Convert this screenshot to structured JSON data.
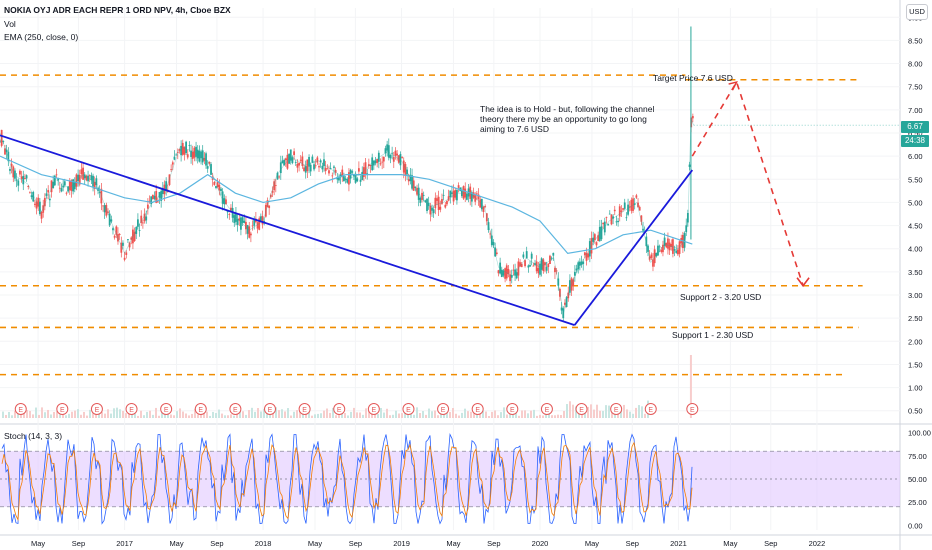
{
  "header": {
    "symbol_line": "NOKIA OYJ ADR EACH REPR 1 ORD NPV, 4h, Cboe BZX",
    "vol_label": "Vol",
    "ema_label": "EMA (250, close, 0)",
    "stoch_label": "Stoch (14, 3, 3)",
    "currency_button": "USD"
  },
  "price_tags": {
    "last_price": "6.67",
    "countdown": "24:38"
  },
  "colors": {
    "up": "#26a69a",
    "down": "#ef5350",
    "ema": "#5cb6e0",
    "channel": "#1a1adb",
    "levels": "#f08c00",
    "projection": "#e53935",
    "stoch_k": "#2962ff",
    "stoch_d": "#f57c00",
    "stoch_band": "#e1c8ff",
    "earnings": "#e45a5a"
  },
  "annotations": {
    "idea": [
      "The idea is to Hold - but, following the channel",
      "theory there my be an opportunity to go long",
      "aiming to 7.6 USD"
    ],
    "target": "Target Price 7.6 USD",
    "support2": "Support 2 - 3.20 USD",
    "support1": "Support 1 - 2.30 USD"
  },
  "earnings_marker": "E",
  "chart_data": {
    "type": "line",
    "title": "NOKIA OYJ ADR EACH REPR 1 ORD NPV, 4h, Cboe BZX",
    "x_axis": {
      "labels": [
        "May",
        "Sep",
        "2017",
        "May",
        "Sep",
        "2018",
        "May",
        "Sep",
        "2019",
        "May",
        "Sep",
        "2020",
        "May",
        "Sep",
        "2021",
        "May",
        "Sep",
        "2022"
      ],
      "range_start": 2016.1,
      "range_end": 2022.6
    },
    "y_axis": {
      "unit": "USD",
      "ticks": [
        "9.00",
        "8.50",
        "8.00",
        "7.50",
        "7.00",
        "6.50",
        "6.00",
        "5.50",
        "5.00",
        "4.50",
        "4.00",
        "3.50",
        "3.00",
        "2.50",
        "2.00",
        "1.50",
        "1.00",
        "0.50"
      ],
      "range": [
        0.3,
        9.2
      ]
    },
    "price_series": {
      "name": "NOKIA",
      "x": [
        2016.1,
        2016.2,
        2016.3,
        2016.4,
        2016.5,
        2016.6,
        2016.7,
        2016.8,
        2016.9,
        2017.0,
        2017.1,
        2017.2,
        2017.3,
        2017.4,
        2017.5,
        2017.6,
        2017.7,
        2017.8,
        2017.9,
        2018.0,
        2018.1,
        2018.2,
        2018.3,
        2018.4,
        2018.5,
        2018.6,
        2018.7,
        2018.8,
        2018.9,
        2019.0,
        2019.1,
        2019.2,
        2019.3,
        2019.4,
        2019.5,
        2019.6,
        2019.7,
        2019.8,
        2019.9,
        2020.0,
        2020.1,
        2020.17,
        2020.22,
        2020.3,
        2020.4,
        2020.5,
        2020.6,
        2020.7,
        2020.8,
        2020.9,
        2021.0,
        2021.05,
        2021.07,
        2021.09,
        2021.11
      ],
      "values": [
        6.5,
        5.6,
        5.4,
        4.8,
        5.5,
        5.3,
        5.6,
        5.4,
        4.6,
        3.9,
        4.5,
        5.0,
        5.3,
        6.2,
        6.1,
        5.9,
        5.1,
        4.7,
        4.4,
        4.6,
        5.6,
        6.0,
        5.8,
        5.9,
        5.7,
        5.5,
        5.6,
        5.9,
        6.1,
        5.9,
        5.3,
        4.9,
        5.0,
        5.2,
        5.2,
        4.9,
        3.6,
        3.4,
        3.8,
        3.6,
        3.8,
        2.6,
        3.2,
        3.7,
        4.2,
        4.6,
        4.8,
        5.0,
        3.7,
        4.1,
        4.0,
        4.2,
        4.7,
        6.8,
        6.67
      ]
    },
    "ema_series": {
      "x": [
        2016.1,
        2016.4,
        2016.7,
        2017.0,
        2017.2,
        2017.4,
        2017.6,
        2017.8,
        2018.0,
        2018.2,
        2018.4,
        2018.6,
        2018.8,
        2019.0,
        2019.2,
        2019.4,
        2019.6,
        2019.8,
        2020.0,
        2020.2,
        2020.4,
        2020.6,
        2020.8,
        2021.0,
        2021.1
      ],
      "values": [
        6.0,
        5.6,
        5.4,
        5.1,
        5.0,
        5.2,
        5.6,
        5.2,
        5.0,
        5.1,
        5.4,
        5.6,
        5.6,
        5.6,
        5.5,
        5.3,
        5.1,
        4.9,
        4.6,
        3.9,
        4.0,
        4.3,
        4.4,
        4.2,
        4.1
      ]
    },
    "channel_lines": [
      {
        "from": {
          "x": 2016.1,
          "y": 6.45
        },
        "to": {
          "x": 2020.25,
          "y": 2.35
        }
      },
      {
        "from": {
          "x": 2020.25,
          "y": 2.35
        },
        "to": {
          "x": 2021.1,
          "y": 5.7
        }
      }
    ],
    "horizontal_levels": [
      {
        "value": 7.75,
        "x_start": 2016.1,
        "x_end": 2021.05
      },
      {
        "value": 7.65,
        "x_start": 2021.05,
        "x_end": 2022.3
      },
      {
        "value": 3.2,
        "x_start": 2016.1,
        "x_end": 2022.33
      },
      {
        "value": 2.3,
        "x_start": 2016.1,
        "x_end": 2022.3
      },
      {
        "value": 1.28,
        "x_start": 2016.1,
        "x_end": 2022.2
      }
    ],
    "projection_path": {
      "x": [
        2021.1,
        2021.42,
        2021.9
      ],
      "y": [
        6.0,
        7.6,
        3.2
      ]
    },
    "earnings_dates": [
      2016.25,
      2016.55,
      2016.8,
      2017.05,
      2017.3,
      2017.55,
      2017.8,
      2018.05,
      2018.3,
      2018.55,
      2018.8,
      2019.05,
      2019.3,
      2019.55,
      2019.8,
      2020.05,
      2020.3,
      2020.55,
      2020.8,
      2021.1
    ],
    "stochastic": {
      "name": "Stoch (14, 3, 3)",
      "ticks": [
        "100.00",
        "75.00",
        "50.00",
        "25.00",
        "0.00"
      ],
      "range": [
        -5,
        105
      ],
      "upper_band": 80,
      "lower_band": 20
    }
  }
}
